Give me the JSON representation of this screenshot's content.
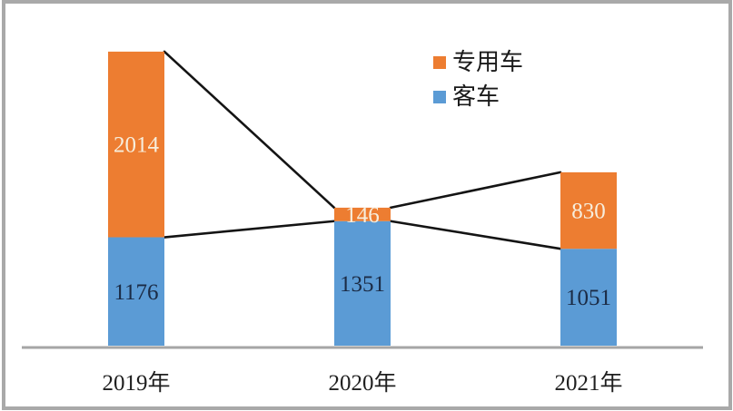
{
  "chart_data": {
    "type": "bar",
    "stacked": true,
    "categories": [
      "2019年",
      "2020年",
      "2021年"
    ],
    "series": [
      {
        "key": "bus",
        "name": "客车",
        "color": "#5b9bd5",
        "label_color": "#1b2b45",
        "values": [
          1176,
          1351,
          1051
        ]
      },
      {
        "key": "special-vehicle",
        "name": "专用车",
        "color": "#ed7d31",
        "label_color": "#f7eedd",
        "values": [
          2014,
          146,
          830
        ]
      }
    ],
    "legend": [
      {
        "key": "special-vehicle",
        "label": "专用车",
        "color": "#ed7d31"
      },
      {
        "key": "bus",
        "label": "客车",
        "color": "#5b9bd5"
      }
    ],
    "series_lines": true,
    "series_line_color": "#141414",
    "axis_color": "#a6a6a6",
    "frame_color": "#a9a9a9",
    "tick_label_color": "#1f1f1f",
    "title": "",
    "xlabel": "",
    "ylabel": ""
  }
}
